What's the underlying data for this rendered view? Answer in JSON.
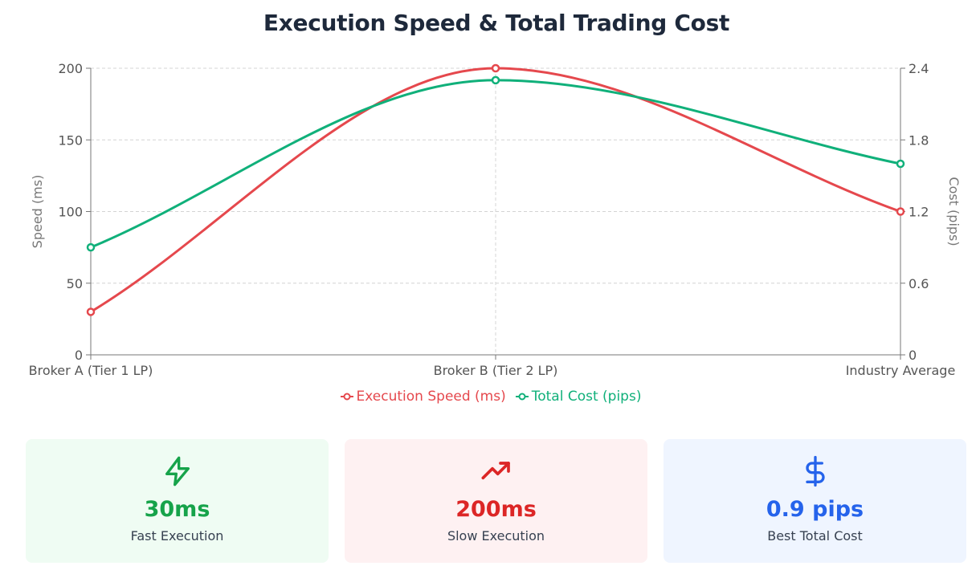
{
  "title": "Execution Speed & Total Trading Cost",
  "chart_data": {
    "type": "line",
    "categories": [
      "Broker A (Tier 1 LP)",
      "Broker B (Tier 2 LP)",
      "Industry Average"
    ],
    "series": [
      {
        "name": "Execution Speed (ms)",
        "axis": "left",
        "color": "#e5484d",
        "values": [
          30,
          200,
          100
        ]
      },
      {
        "name": "Total Cost (pips)",
        "axis": "right",
        "color": "#10b07a",
        "values": [
          0.9,
          2.3,
          1.6
        ]
      }
    ],
    "y_left": {
      "label": "Speed (ms)",
      "ticks": [
        0,
        50,
        100,
        150,
        200
      ],
      "range": [
        0,
        200
      ]
    },
    "y_right": {
      "label": "Cost (pips)",
      "ticks": [
        "0",
        "0.6",
        "1.2",
        "1.8",
        "2.4"
      ],
      "range": [
        0,
        2.4
      ]
    },
    "grid": true,
    "legend_position": "bottom"
  },
  "cards": [
    {
      "icon": "lightning-icon",
      "value": "30ms",
      "label": "Fast Execution",
      "bg": "#effcf3",
      "color": "#16a34a"
    },
    {
      "icon": "trending-up-icon",
      "value": "200ms",
      "label": "Slow Execution",
      "bg": "#fef1f2",
      "color": "#dc2626"
    },
    {
      "icon": "dollar-icon",
      "value": "0.9 pips",
      "label": "Best Total Cost",
      "bg": "#eff5ff",
      "color": "#2563eb"
    }
  ]
}
